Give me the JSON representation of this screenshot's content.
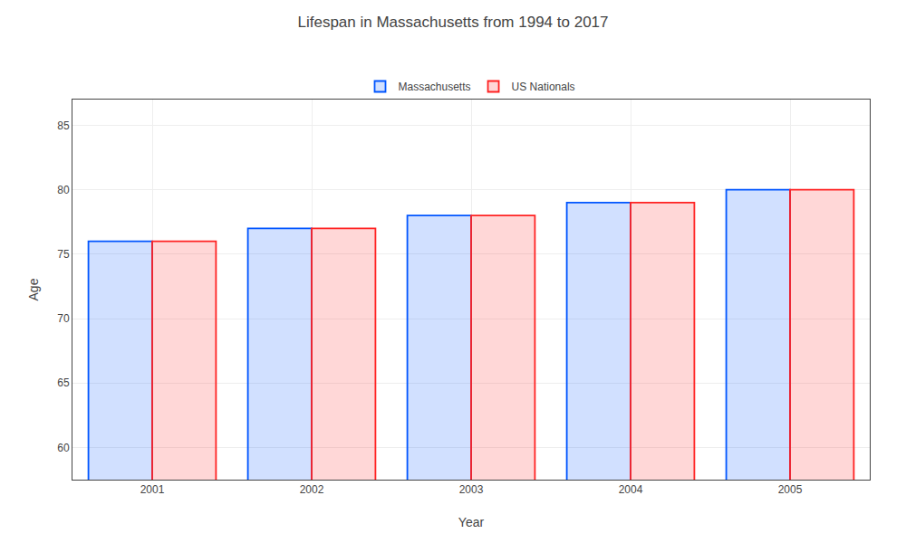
{
  "chart_data": {
    "type": "bar",
    "title": "Lifespan in Massachusetts from 1994 to 2017",
    "x_label": "Year",
    "y_label": "Age",
    "categories": [
      "2001",
      "2002",
      "2003",
      "2004",
      "2005"
    ],
    "series": [
      {
        "name": "Massachusetts",
        "color": "#0055ff",
        "values": [
          76,
          77,
          78,
          79,
          80
        ]
      },
      {
        "name": "US Nationals",
        "color": "#ff2222",
        "values": [
          76,
          77,
          78,
          79,
          80
        ]
      }
    ],
    "ylim": [
      57.5,
      87
    ],
    "yticks": [
      60,
      65,
      70,
      75,
      80,
      85
    ],
    "grid": true,
    "legend": "top"
  }
}
